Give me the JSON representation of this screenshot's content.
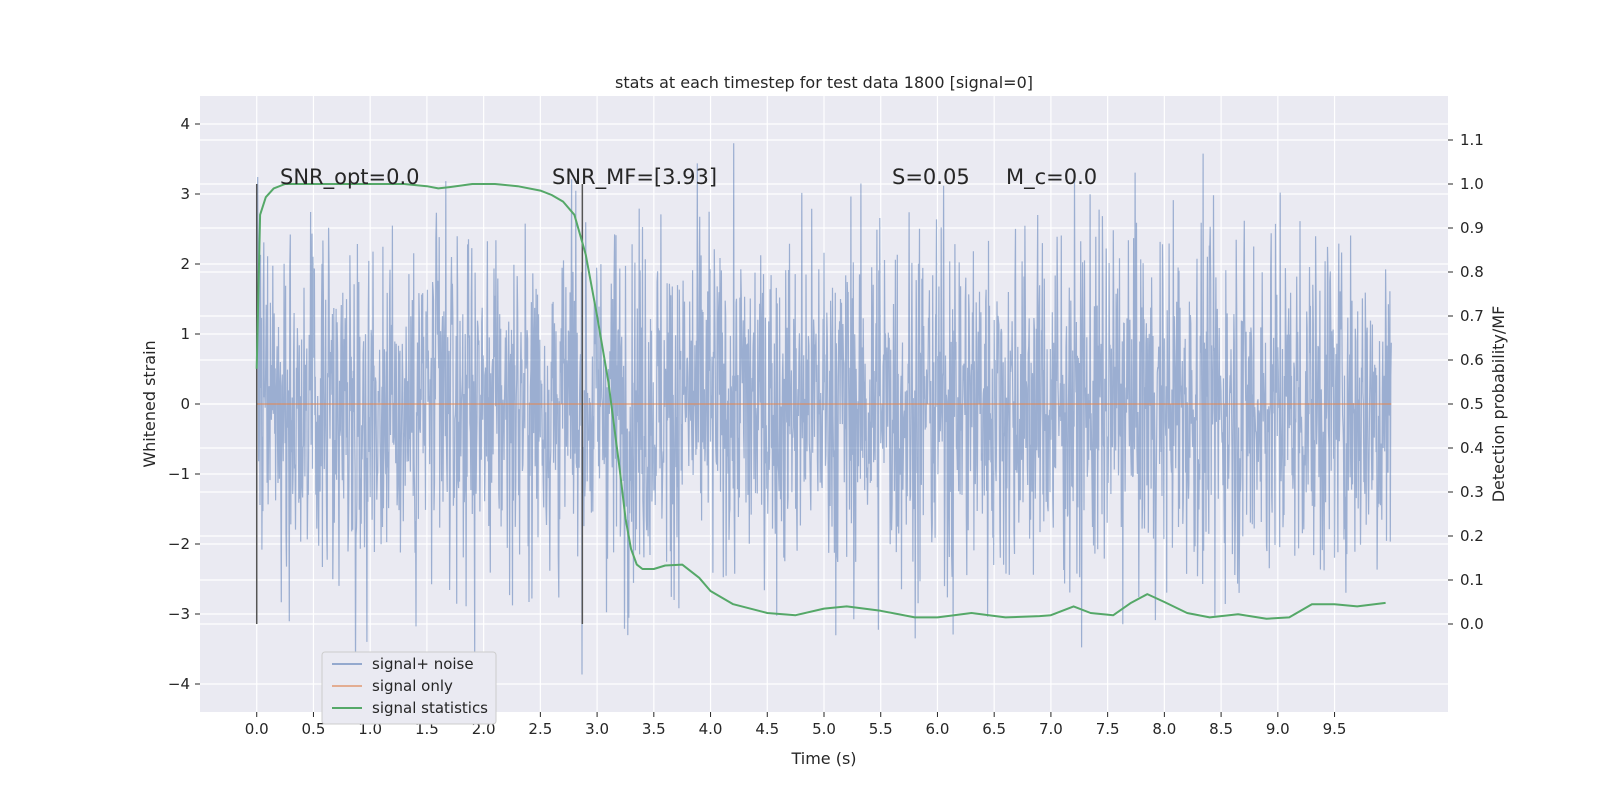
{
  "chart_data": {
    "type": "line",
    "title": "stats at each timestep for test data 1800 [signal=0]",
    "xlabel": "Time (s)",
    "ylabel_left": "Whitened strain",
    "ylabel_right": "Detection probability/MF",
    "xlim": [
      -0.5,
      10.5
    ],
    "ylim_left": [
      -4.4,
      4.4
    ],
    "ylim_right": [
      -0.2,
      1.2
    ],
    "x_ticks": [
      0.0,
      0.5,
      1.0,
      1.5,
      2.0,
      2.5,
      3.0,
      3.5,
      4.0,
      4.5,
      5.0,
      5.5,
      6.0,
      6.5,
      7.0,
      7.5,
      8.0,
      8.5,
      9.0,
      9.5
    ],
    "x_tick_labels": [
      "0.0",
      "0.5",
      "1.0",
      "1.5",
      "2.0",
      "2.5",
      "3.0",
      "3.5",
      "4.0",
      "4.5",
      "5.0",
      "5.5",
      "6.0",
      "6.5",
      "7.0",
      "7.5",
      "8.0",
      "8.5",
      "9.0",
      "9.5"
    ],
    "y_left_ticks": [
      -4,
      -3,
      -2,
      -1,
      0,
      1,
      2,
      3,
      4
    ],
    "y_left_tick_labels": [
      "−4",
      "−3",
      "−2",
      "−1",
      "0",
      "1",
      "2",
      "3",
      "4"
    ],
    "y_right_ticks": [
      0.0,
      0.1,
      0.2,
      0.3,
      0.4,
      0.5,
      0.6,
      0.7,
      0.8,
      0.9,
      1.0,
      1.1
    ],
    "y_right_tick_labels": [
      "0.0",
      "0.1",
      "0.2",
      "0.3",
      "0.4",
      "0.5",
      "0.6",
      "0.7",
      "0.8",
      "0.9",
      "1.0",
      "1.1"
    ],
    "grid": true,
    "legend_position": "lower-left",
    "annotations": [
      {
        "text": "SNR_opt=0.0",
        "x": 0.2,
        "y_right": 1.0
      },
      {
        "text": "SNR_MF=[3.93]",
        "x": 2.6,
        "y_right": 1.0
      },
      {
        "text": "S=0.05",
        "x": 5.6,
        "y_right": 1.0
      },
      {
        "text": "M_c=0.0",
        "x": 6.6,
        "y_right": 1.0
      }
    ],
    "vertical_lines": [
      {
        "x": 0.0,
        "y_from_right": 0.0,
        "y_to_right": 1.0
      },
      {
        "x": 2.87,
        "y_from_right": 0.0,
        "y_to_right": 1.0
      }
    ],
    "series": [
      {
        "name": "signal+ noise",
        "axis": "left",
        "color": "#4c72b0",
        "kind": "noise",
        "x_range": [
          0.0,
          10.0
        ],
        "typical_amplitude": 1.3,
        "peak_max": 4.05,
        "peak_min": -3.98
      },
      {
        "name": "signal only",
        "axis": "left",
        "color": "#dd8452",
        "x": [
          0.0,
          10.0
        ],
        "y": [
          0.0,
          0.0
        ]
      },
      {
        "name": "signal statistics",
        "axis": "right",
        "color": "#55a868",
        "x": [
          0.0,
          0.03,
          0.08,
          0.15,
          0.25,
          0.5,
          1.0,
          1.3,
          1.5,
          1.6,
          1.7,
          1.9,
          2.1,
          2.3,
          2.5,
          2.6,
          2.7,
          2.8,
          2.9,
          3.0,
          3.1,
          3.2,
          3.25,
          3.3,
          3.35,
          3.4,
          3.5,
          3.6,
          3.75,
          3.9,
          4.0,
          4.2,
          4.5,
          4.75,
          5.0,
          5.2,
          5.5,
          5.8,
          6.0,
          6.3,
          6.6,
          6.9,
          7.0,
          7.2,
          7.35,
          7.55,
          7.7,
          7.85,
          8.0,
          8.2,
          8.4,
          8.65,
          8.9,
          9.1,
          9.3,
          9.5,
          9.7,
          9.95
        ],
        "y": [
          0.58,
          0.93,
          0.97,
          0.99,
          1.0,
          1.0,
          1.0,
          1.0,
          0.995,
          0.99,
          0.993,
          1.0,
          1.0,
          0.995,
          0.985,
          0.975,
          0.96,
          0.93,
          0.84,
          0.7,
          0.55,
          0.35,
          0.24,
          0.17,
          0.135,
          0.125,
          0.125,
          0.133,
          0.135,
          0.105,
          0.075,
          0.045,
          0.025,
          0.02,
          0.035,
          0.04,
          0.03,
          0.015,
          0.015,
          0.025,
          0.015,
          0.018,
          0.02,
          0.04,
          0.025,
          0.02,
          0.047,
          0.068,
          0.05,
          0.025,
          0.015,
          0.022,
          0.012,
          0.015,
          0.045,
          0.045,
          0.04,
          0.048
        ]
      }
    ]
  }
}
